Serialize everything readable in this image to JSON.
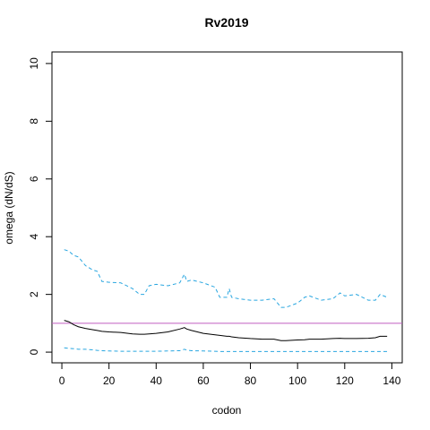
{
  "chart_data": {
    "type": "line",
    "title": "Rv2019",
    "x_label": "codon",
    "y_label": "omega (dN/dS)",
    "x": [
      1,
      3,
      5,
      7,
      10,
      13,
      15,
      17,
      20,
      25,
      30,
      33,
      35,
      37,
      40,
      45,
      50,
      52,
      53,
      55,
      60,
      65,
      67,
      70,
      71,
      72,
      75,
      80,
      85,
      90,
      93,
      95,
      100,
      103,
      105,
      110,
      115,
      118,
      120,
      125,
      130,
      133,
      135,
      138
    ],
    "series": [
      {
        "color": "#29a6e0",
        "dash": true,
        "values": [
          3.55,
          3.5,
          3.35,
          3.3,
          3.0,
          2.85,
          2.8,
          2.45,
          2.42,
          2.4,
          2.2,
          2.0,
          2.0,
          2.3,
          2.35,
          2.3,
          2.4,
          2.7,
          2.45,
          2.5,
          2.4,
          2.25,
          1.9,
          1.9,
          2.2,
          1.9,
          1.85,
          1.8,
          1.8,
          1.85,
          1.55,
          1.55,
          1.7,
          1.9,
          1.95,
          1.8,
          1.85,
          2.05,
          1.95,
          2.0,
          1.8,
          1.8,
          2.0,
          1.9
        ]
      },
      {
        "color": "#000000",
        "dash": false,
        "values": [
          1.1,
          1.05,
          0.95,
          0.88,
          0.82,
          0.78,
          0.75,
          0.72,
          0.7,
          0.68,
          0.63,
          0.62,
          0.62,
          0.63,
          0.65,
          0.7,
          0.8,
          0.85,
          0.8,
          0.75,
          0.65,
          0.6,
          0.58,
          0.55,
          0.55,
          0.53,
          0.5,
          0.47,
          0.45,
          0.45,
          0.4,
          0.4,
          0.42,
          0.43,
          0.45,
          0.45,
          0.47,
          0.48,
          0.47,
          0.47,
          0.48,
          0.5,
          0.55,
          0.55
        ]
      },
      {
        "color": "#29a6e0",
        "dash": true,
        "values": [
          0.15,
          0.13,
          0.12,
          0.1,
          0.1,
          0.08,
          0.06,
          0.05,
          0.04,
          0.03,
          0.03,
          0.03,
          0.03,
          0.03,
          0.03,
          0.04,
          0.05,
          0.1,
          0.07,
          0.05,
          0.04,
          0.03,
          0.02,
          0.02,
          0.02,
          0.02,
          0.02,
          0.02,
          0.02,
          0.02,
          0.02,
          0.02,
          0.02,
          0.02,
          0.02,
          0.02,
          0.02,
          0.02,
          0.02,
          0.02,
          0.02,
          0.02,
          0.02,
          0.02
        ]
      }
    ],
    "reference_line": {
      "value": 1,
      "color": "#c05ec0"
    },
    "xlim": [
      -4.2,
      144.4
    ],
    "ylim": [
      -0.37,
      10.4
    ],
    "xticks": [
      0,
      20,
      40,
      60,
      80,
      100,
      120,
      140
    ],
    "yticks": [
      0,
      2,
      4,
      6,
      8,
      10
    ]
  }
}
